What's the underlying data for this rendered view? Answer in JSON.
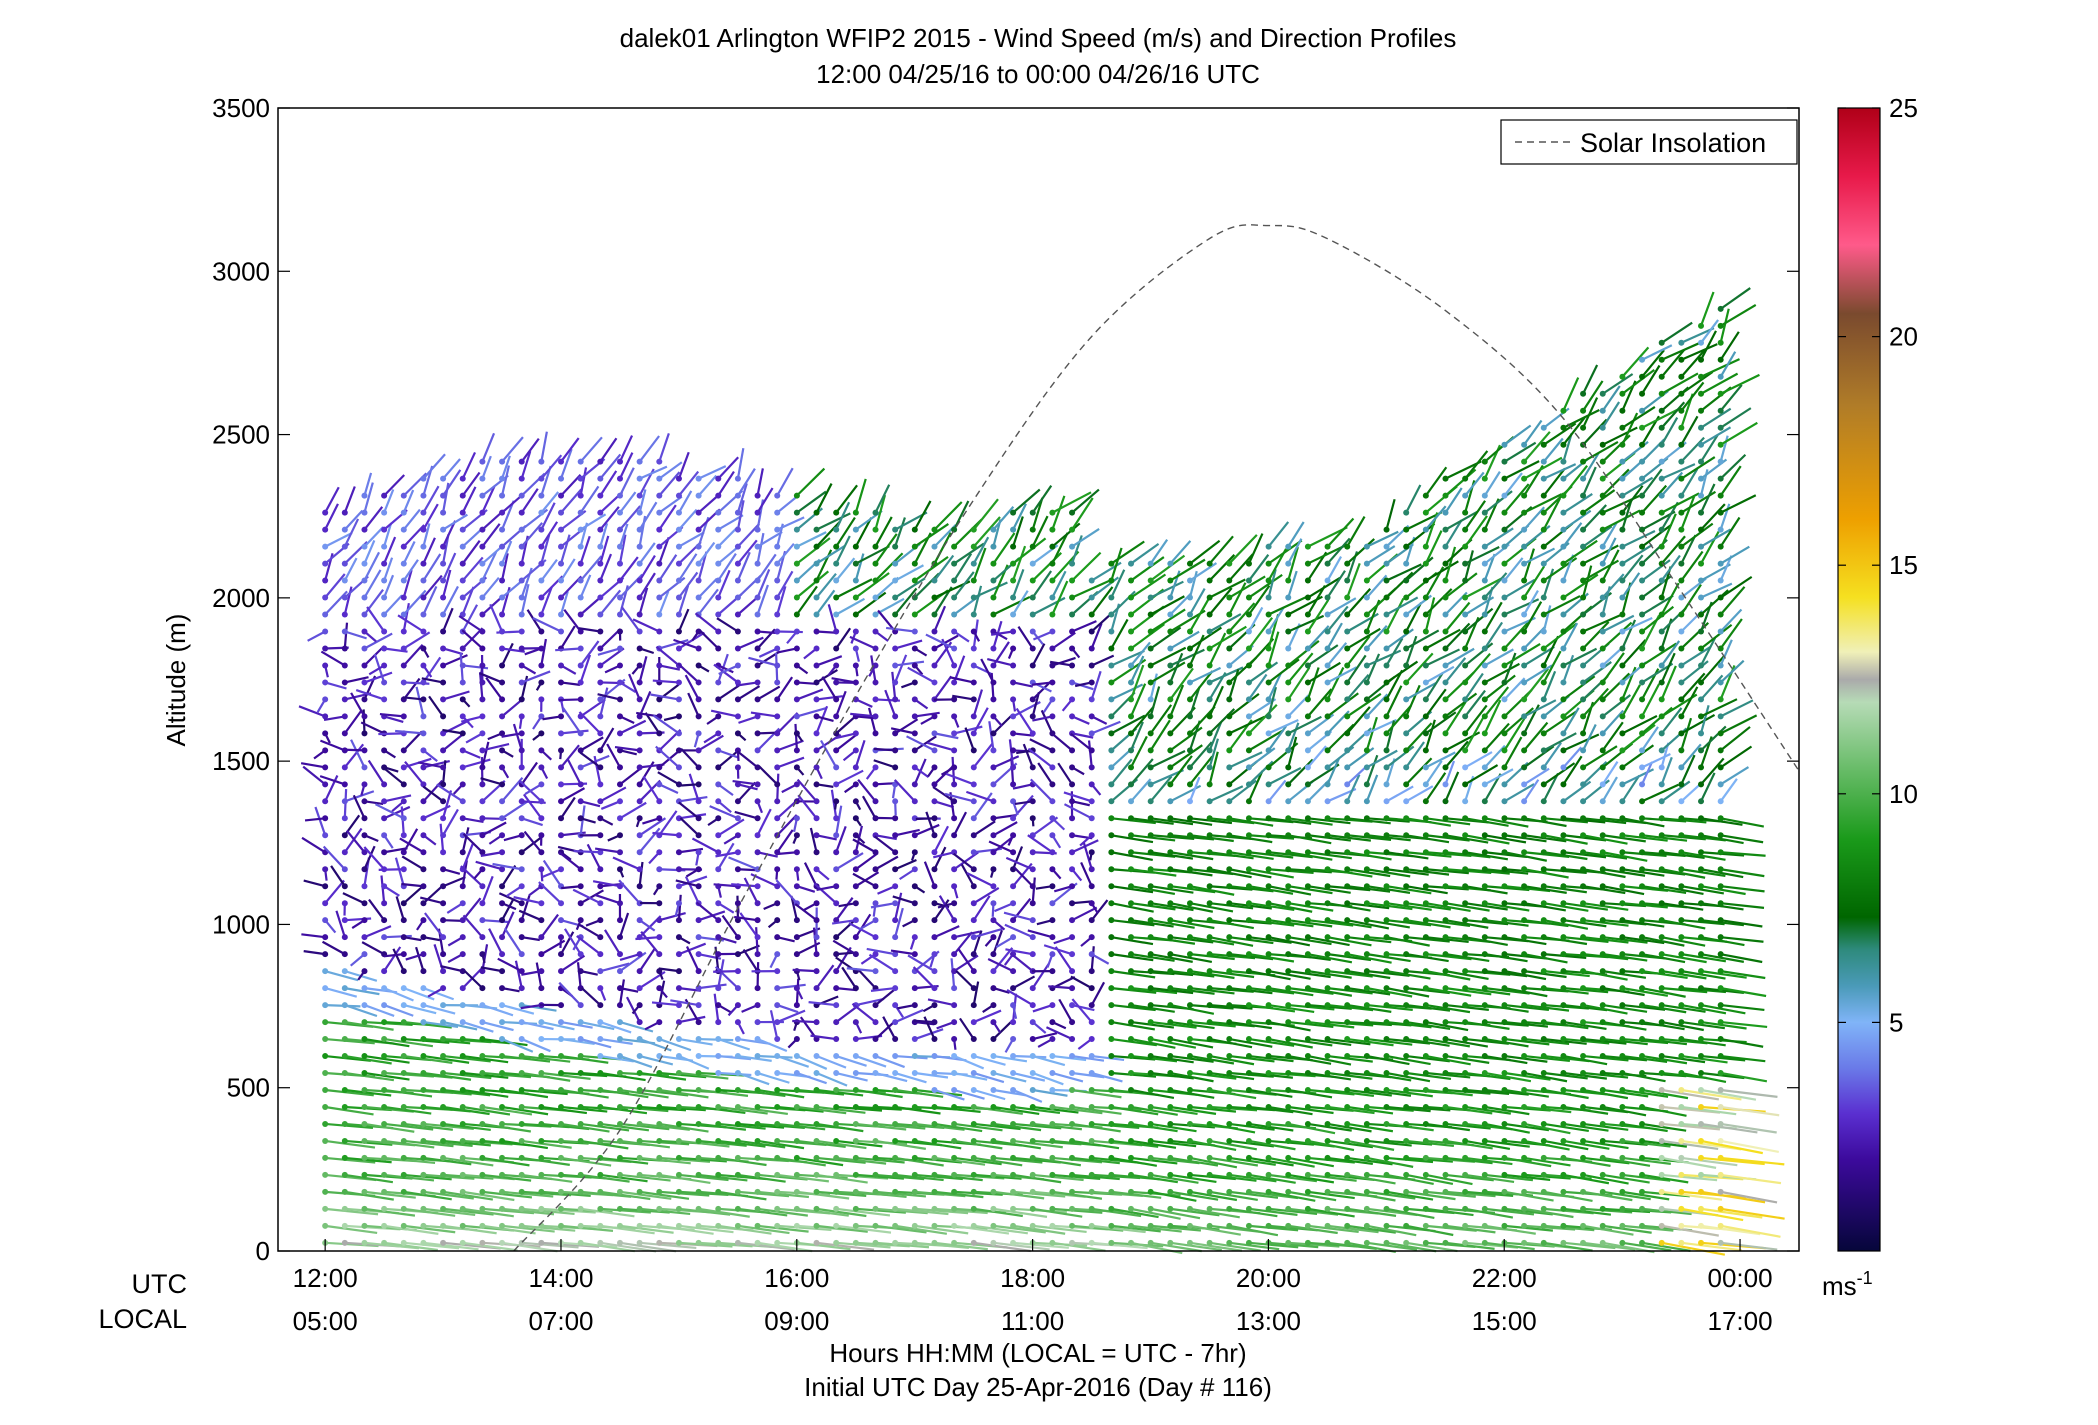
{
  "chart_data": {
    "type": "wind-barb-profile",
    "title": "dalek01 Arlington WFIP2 2015 - Wind Speed (m/s) and Direction Profiles",
    "subtitle": "12:00 04/25/16 to 00:00 04/26/16  UTC",
    "ylabel": "Altitude (m)",
    "ylim": [
      0,
      3500
    ],
    "y_ticks": [
      "0",
      "500",
      "1000",
      "1500",
      "2000",
      "2500",
      "3000",
      "3500"
    ],
    "xlim_hours": [
      11.6,
      24.5
    ],
    "utc_row_label": "UTC",
    "local_row_label": "LOCAL",
    "utc_ticks": [
      {
        "hour": 12,
        "label": "12:00"
      },
      {
        "hour": 14,
        "label": "14:00"
      },
      {
        "hour": 16,
        "label": "16:00"
      },
      {
        "hour": 18,
        "label": "18:00"
      },
      {
        "hour": 20,
        "label": "20:00"
      },
      {
        "hour": 22,
        "label": "22:00"
      },
      {
        "hour": 24,
        "label": "00:00"
      }
    ],
    "local_ticks": [
      "05:00",
      "07:00",
      "09:00",
      "11:00",
      "13:00",
      "15:00",
      "17:00"
    ],
    "xlabel": "Hours HH:MM  (LOCAL = UTC - 7hr)",
    "xlabel2": "Initial UTC Day 25-Apr-2016 (Day # 116)",
    "legend": {
      "entries": [
        "Solar Insolation"
      ],
      "placement": "top-right"
    },
    "colorbar": {
      "range": [
        0,
        25
      ],
      "ticks": [
        "5",
        "10",
        "15",
        "20",
        "25"
      ],
      "unit_label": "ms",
      "unit_exp": "-1",
      "stops": [
        {
          "v": 0,
          "c": "#06063a"
        },
        {
          "v": 2,
          "c": "#3c0a9c"
        },
        {
          "v": 3,
          "c": "#5a2fd0"
        },
        {
          "v": 4,
          "c": "#6a7ae8"
        },
        {
          "v": 5,
          "c": "#80b4f8"
        },
        {
          "v": 5.8,
          "c": "#4a9ab8"
        },
        {
          "v": 6.6,
          "c": "#2e8a7c"
        },
        {
          "v": 7.3,
          "c": "#006600"
        },
        {
          "v": 9.0,
          "c": "#1a9a1a"
        },
        {
          "v": 10.5,
          "c": "#66bb66"
        },
        {
          "v": 12.0,
          "c": "#b6dbb6"
        },
        {
          "v": 12.5,
          "c": "#aaaaaa"
        },
        {
          "v": 13.1,
          "c": "#f0f0b8"
        },
        {
          "v": 14.3,
          "c": "#f5e020"
        },
        {
          "v": 16.0,
          "c": "#eea000"
        },
        {
          "v": 18.5,
          "c": "#b07c28"
        },
        {
          "v": 20.5,
          "c": "#7a4a2e"
        },
        {
          "v": 22.0,
          "c": "#ff5a8a"
        },
        {
          "v": 23.5,
          "c": "#e81a4a"
        },
        {
          "v": 25.0,
          "c": "#b00018"
        }
      ]
    },
    "solar_insolation": {
      "hour": [
        13.6,
        14.5,
        15.5,
        16.5,
        17.5,
        18.5,
        19.5,
        20.0,
        20.5,
        21.5,
        22.5,
        23.5,
        24.5
      ],
      "altitude_m": [
        0,
        370,
        1050,
        1700,
        2300,
        2800,
        3100,
        3140,
        3100,
        2880,
        2550,
        2020,
        1470
      ]
    },
    "wind_profiles": {
      "description_hours": "profiles every ~10 minutes from 12:00 to 23:50 UTC",
      "start_hour": 12.0,
      "step_hour": 0.1667,
      "count": 72
    }
  }
}
